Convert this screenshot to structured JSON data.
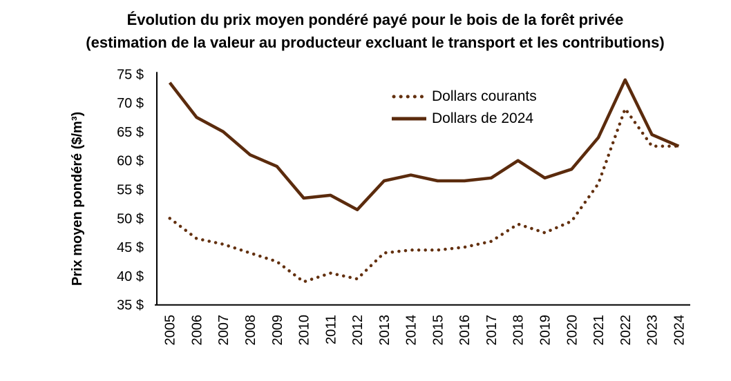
{
  "title": {
    "line1": "Évolution du prix moyen pondéré payé pour le bois de la forêt privée",
    "line2": "(estimation de la valeur au producteur excluant le transport et les contributions)"
  },
  "axes": {
    "y_label": "Prix moyen pondéré ($/m³)"
  },
  "colors": {
    "line_solid": "#5B2B0D",
    "line_dotted": "#63300F",
    "axis": "#000000",
    "text": "#000000"
  },
  "chart_data": {
    "type": "line",
    "title": "Évolution du prix moyen pondéré payé pour le bois de la forêt privée (estimation de la valeur au producteur excluant le transport et les contributions)",
    "xlabel": "",
    "ylabel": "Prix moyen pondéré ($/m³)",
    "ylim": [
      35,
      75
    ],
    "y_tick_step": 5,
    "y_tick_labels": [
      "75 $",
      "70 $",
      "65 $",
      "60 $",
      "55 $",
      "50 $",
      "45 $",
      "40 $",
      "35 $"
    ],
    "categories": [
      "2005",
      "2006",
      "2007",
      "2008",
      "2009",
      "2010",
      "2011",
      "2012",
      "2013",
      "2014",
      "2015",
      "2016",
      "2017",
      "2018",
      "2019",
      "2020",
      "2021",
      "2022",
      "2023",
      "2024"
    ],
    "series": [
      {
        "name": "Dollars courants",
        "style": "dotted",
        "values": [
          50,
          46.5,
          45.5,
          44,
          42.5,
          39,
          40.5,
          39.5,
          44,
          44.5,
          44.5,
          45,
          46,
          49,
          47.5,
          49.5,
          56,
          69,
          62.5,
          62.5
        ]
      },
      {
        "name": "Dollars de 2024",
        "style": "solid",
        "values": [
          73.5,
          67.5,
          65,
          61,
          59,
          53.5,
          54,
          51.5,
          56.5,
          57.5,
          56.5,
          56.5,
          57,
          60,
          57,
          58.5,
          64,
          74,
          64.5,
          62.5
        ]
      }
    ],
    "legend_position": "upper-center-right",
    "grid": false
  }
}
